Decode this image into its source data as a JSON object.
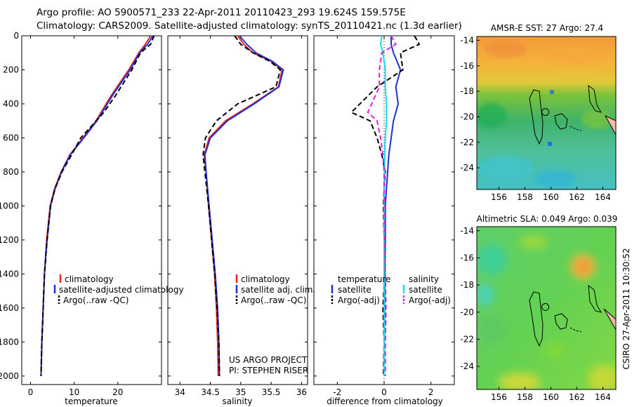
{
  "header": {
    "line1": "Argo profile: AO 5900571_233 22-Apr-2011 20110423_293 19.624S 159.575E",
    "line2": "Climatology: CARS2009. Satellite-adjusted climatology: synTS_20110421.nc (1.3d earlier)"
  },
  "side_label": "CSIRO 27-Apr-2011 10:30:52",
  "colors": {
    "climatology": "#e8241c",
    "satellite": "#1f2fd6",
    "argo": "#000000",
    "salinity_satellite": "#11e0e8",
    "salinity_argo": "#e020e0",
    "axis": "#000000"
  },
  "chart_data": [
    {
      "type": "line",
      "xlabel": "temperature",
      "xlim": [
        -2,
        30
      ],
      "xticks": [
        0,
        10,
        20
      ],
      "ylim": [
        2050,
        0
      ],
      "yticks": [
        0,
        200,
        400,
        600,
        800,
        1000,
        1200,
        1400,
        1600,
        1800,
        2000
      ],
      "legend": [
        "climatology",
        "satellite-adjusted climatology",
        "Argo(..raw -QC)"
      ],
      "series": [
        {
          "name": "climatology",
          "style": "solid",
          "x": [
            27.5,
            26.3,
            24.8,
            22.5,
            18.5,
            15.0,
            12.0,
            9.0,
            7.0,
            5.5,
            4.5,
            3.7,
            3.2,
            2.9,
            2.6,
            2.4
          ],
          "y": [
            0,
            50,
            100,
            200,
            350,
            500,
            600,
            700,
            800,
            900,
            1000,
            1200,
            1400,
            1600,
            1800,
            2000
          ]
        },
        {
          "name": "satellite-adjusted climatology",
          "style": "solid",
          "x": [
            28.0,
            26.8,
            25.0,
            22.8,
            18.8,
            15.2,
            12.2,
            9.1,
            7.1,
            5.6,
            4.6,
            3.8,
            3.2,
            2.9,
            2.6,
            2.4
          ],
          "y": [
            0,
            50,
            100,
            200,
            350,
            500,
            600,
            700,
            800,
            900,
            1000,
            1200,
            1400,
            1600,
            1800,
            2000
          ]
        },
        {
          "name": "Argo(..raw -QC)",
          "style": "dashed",
          "x": [
            28.3,
            27.5,
            25.2,
            23.2,
            19.5,
            16.8,
            11.5,
            9.4,
            7.2,
            5.6,
            4.6,
            3.8,
            3.2,
            2.9,
            2.6,
            2.4
          ],
          "y": [
            0,
            50,
            100,
            200,
            350,
            450,
            600,
            700,
            800,
            900,
            1000,
            1200,
            1400,
            1600,
            1800,
            2000
          ]
        }
      ]
    },
    {
      "type": "line",
      "xlabel": "salinity",
      "xlim": [
        33.8,
        36.1
      ],
      "xticks": [
        34,
        34.5,
        35,
        35.5,
        36
      ],
      "ylim": [
        2050,
        0
      ],
      "legend": [
        "climatology",
        "satellite adj. clim.",
        "Argo(..raw -QC)"
      ],
      "annotation": [
        "US ARGO PROJECT",
        "PI: STEPHEN RISER"
      ],
      "series": [
        {
          "name": "climatology",
          "style": "solid",
          "x": [
            34.95,
            35.05,
            35.2,
            35.5,
            35.68,
            35.62,
            35.2,
            34.75,
            34.48,
            34.4,
            34.43,
            34.47,
            34.52,
            34.57,
            34.6,
            34.62,
            34.63
          ],
          "y": [
            0,
            50,
            100,
            150,
            200,
            300,
            400,
            500,
            600,
            700,
            800,
            1000,
            1200,
            1400,
            1600,
            1800,
            2000
          ]
        },
        {
          "name": "satellite adj. clim.",
          "style": "solid",
          "x": [
            34.98,
            35.1,
            35.25,
            35.52,
            35.7,
            35.63,
            35.22,
            34.78,
            34.5,
            34.41,
            34.43,
            34.48,
            34.53,
            34.58,
            34.62,
            34.64,
            34.65
          ],
          "y": [
            0,
            50,
            100,
            150,
            200,
            300,
            400,
            500,
            600,
            700,
            800,
            1000,
            1200,
            1400,
            1600,
            1800,
            2000
          ]
        },
        {
          "name": "Argo(..raw -QC)",
          "style": "dashed",
          "x": [
            34.9,
            35.0,
            35.2,
            35.48,
            35.65,
            35.58,
            34.95,
            34.6,
            34.42,
            34.38,
            34.41,
            34.47,
            34.52,
            34.57,
            34.61,
            34.64,
            34.65
          ],
          "y": [
            0,
            50,
            100,
            150,
            200,
            300,
            400,
            500,
            600,
            700,
            800,
            1000,
            1200,
            1400,
            1600,
            1800,
            2000
          ]
        }
      ]
    },
    {
      "type": "line",
      "xlabel": "difference from climatology",
      "xlim": [
        -3,
        3
      ],
      "xticks": [
        -2,
        0,
        2
      ],
      "ylim": [
        2050,
        0
      ],
      "legend_groups": [
        {
          "title": "temperature",
          "items": [
            "satellite",
            "Argo(-adj)"
          ]
        },
        {
          "title": "salinity",
          "items": [
            "satellite",
            "Argo(-adj)"
          ]
        }
      ],
      "series": [
        {
          "name": "temperature satellite",
          "style": "solid",
          "x": [
            0.3,
            0.3,
            0.4,
            0.7,
            0.5,
            0.6,
            0.4,
            0.3,
            0.2,
            0.15,
            0.1,
            0.05,
            0.05,
            0.03,
            0.02,
            0.01,
            0.0
          ],
          "y": [
            0,
            50,
            100,
            200,
            300,
            400,
            500,
            600,
            700,
            800,
            900,
            1000,
            1200,
            1400,
            1600,
            1800,
            2000
          ]
        },
        {
          "name": "temperature Argo(-adj)",
          "style": "dashed",
          "x": [
            1.3,
            1.5,
            0.7,
            0.8,
            -0.3,
            -1.4,
            -0.6,
            -0.3,
            -0.1,
            0.05,
            0.0,
            -0.03,
            0.0,
            0.02,
            -0.05,
            0.0,
            -0.03
          ],
          "y": [
            0,
            50,
            100,
            200,
            300,
            450,
            500,
            600,
            700,
            800,
            900,
            1000,
            1200,
            1400,
            1600,
            1800,
            2000
          ]
        },
        {
          "name": "salinity satellite",
          "style": "solid",
          "x": [
            -0.1,
            -0.15,
            -0.05,
            0.05,
            0.05,
            0.1,
            0.1,
            0.05,
            0.03,
            0.02,
            0.0,
            0.0,
            0.0,
            0.0,
            0.0,
            0.0,
            0.0
          ],
          "y": [
            0,
            50,
            100,
            200,
            300,
            400,
            500,
            600,
            700,
            800,
            900,
            1000,
            1200,
            1400,
            1600,
            1800,
            2000
          ]
        },
        {
          "name": "salinity Argo(-adj)",
          "style": "dashed",
          "x": [
            0.3,
            0.5,
            -0.1,
            -0.2,
            -0.2,
            -0.7,
            -0.3,
            -0.15,
            -0.05,
            0.0,
            0.0,
            0.03,
            0.02,
            0.05,
            0.08,
            0.05,
            0.05
          ],
          "y": [
            0,
            50,
            100,
            200,
            300,
            450,
            500,
            600,
            700,
            800,
            900,
            1000,
            1200,
            1400,
            1600,
            1800,
            2000
          ]
        }
      ]
    },
    {
      "type": "heatmap",
      "title": "AMSR-E SST: 27 Argo: 27.4",
      "xlim": [
        154.3,
        165
      ],
      "ylim": [
        -25.7,
        -13.7
      ],
      "xticks": [
        156,
        158,
        160,
        162,
        164
      ],
      "yticks": [
        -14,
        -16,
        -18,
        -20,
        -22,
        -24
      ],
      "marker": {
        "lon": 159.575,
        "lat": -19.624
      }
    },
    {
      "type": "heatmap",
      "title": "Altimetric SLA: 0.049 Argo: 0.039",
      "xlim": [
        154.3,
        165
      ],
      "ylim": [
        -25.7,
        -13.7
      ],
      "xticks": [
        156,
        158,
        160,
        162,
        164
      ],
      "yticks": [
        -14,
        -16,
        -18,
        -20,
        -22,
        -24
      ],
      "marker": {
        "lon": 159.575,
        "lat": -19.624
      }
    }
  ]
}
